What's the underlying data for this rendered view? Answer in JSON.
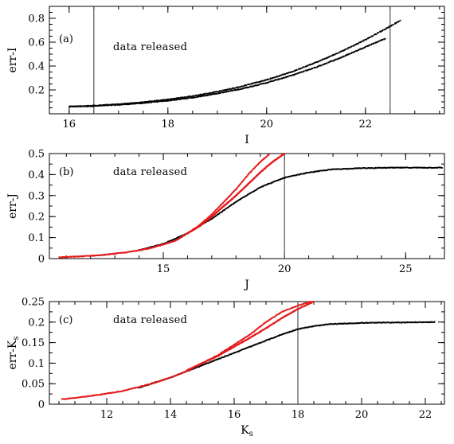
{
  "chart_data": [
    {
      "type": "scatter",
      "panel_tag": "(a)",
      "annotation": "data released",
      "xlabel": "I",
      "ylabel": "err-I",
      "xlim": [
        15.6,
        23.6
      ],
      "ylim": [
        0,
        0.9
      ],
      "xticks": [
        16,
        18,
        20,
        22
      ],
      "yticks": [
        0.2,
        0.4,
        0.6,
        0.8
      ],
      "minor_x": 0.5,
      "minor_y": 0.05,
      "cut_lines_x": [
        16.5,
        22.5
      ],
      "series": [
        {
          "color": "#000000",
          "points": [
            [
              16,
              0.06
            ],
            [
              16.5,
              0.065
            ],
            [
              17,
              0.075
            ],
            [
              17.5,
              0.09
            ],
            [
              18,
              0.11
            ],
            [
              18.5,
              0.135
            ],
            [
              19,
              0.17
            ],
            [
              19.5,
              0.21
            ],
            [
              20,
              0.26
            ],
            [
              20.5,
              0.32
            ],
            [
              21,
              0.39
            ],
            [
              21.5,
              0.47
            ],
            [
              22,
              0.56
            ],
            [
              22.4,
              0.63
            ]
          ]
        },
        {
          "color": "#000000",
          "points": [
            [
              16,
              0.06
            ],
            [
              16.5,
              0.068
            ],
            [
              17,
              0.08
            ],
            [
              17.5,
              0.097
            ],
            [
              18,
              0.12
            ],
            [
              18.5,
              0.148
            ],
            [
              19,
              0.185
            ],
            [
              19.5,
              0.23
            ],
            [
              20,
              0.285
            ],
            [
              20.5,
              0.35
            ],
            [
              21,
              0.43
            ],
            [
              21.5,
              0.52
            ],
            [
              22,
              0.62
            ],
            [
              22.4,
              0.71
            ],
            [
              22.7,
              0.78
            ]
          ]
        }
      ]
    },
    {
      "type": "scatter",
      "panel_tag": "(b)",
      "annotation": "data released",
      "xlabel": "J",
      "ylabel": "err-J",
      "xlim": [
        10.3,
        26.6
      ],
      "ylim": [
        0,
        0.5
      ],
      "xticks": [
        15,
        20,
        25
      ],
      "yticks": [
        0,
        0.1,
        0.2,
        0.3,
        0.4,
        0.5
      ],
      "minor_x": 1,
      "minor_y": 0.05,
      "cut_lines_x": [
        20
      ],
      "series": [
        {
          "color": "#000000",
          "points": [
            [
              14,
              0.04
            ],
            [
              15,
              0.07
            ],
            [
              16,
              0.12
            ],
            [
              17,
              0.19
            ],
            [
              18,
              0.27
            ],
            [
              19,
              0.34
            ],
            [
              20,
              0.385
            ],
            [
              21,
              0.41
            ],
            [
              22,
              0.425
            ],
            [
              23,
              0.43
            ],
            [
              24,
              0.432
            ],
            [
              25,
              0.433
            ],
            [
              26.5,
              0.433
            ]
          ]
        },
        {
          "color": "#e41a1c",
          "points": [
            [
              10.7,
              0.006
            ],
            [
              11.5,
              0.01
            ],
            [
              12.5,
              0.017
            ],
            [
              13.5,
              0.03
            ],
            [
              14.5,
              0.05
            ],
            [
              15.5,
              0.085
            ],
            [
              16,
              0.12
            ],
            [
              16.5,
              0.16
            ],
            [
              17,
              0.21
            ],
            [
              17.5,
              0.27
            ],
            [
              18,
              0.33
            ],
            [
              18.5,
              0.4
            ],
            [
              19,
              0.46
            ],
            [
              19.4,
              0.5
            ]
          ]
        },
        {
          "color": "#e41a1c",
          "points": [
            [
              16,
              0.12
            ],
            [
              16.5,
              0.155
            ],
            [
              17,
              0.2
            ],
            [
              17.5,
              0.25
            ],
            [
              18,
              0.3
            ],
            [
              18.5,
              0.355
            ],
            [
              19,
              0.41
            ],
            [
              19.5,
              0.46
            ],
            [
              20,
              0.5
            ]
          ]
        }
      ]
    },
    {
      "type": "scatter",
      "panel_tag": "(c)",
      "annotation": "data released",
      "xlabel": "Ks",
      "ylabel": "err-Ks",
      "xlim": [
        10.2,
        22.6
      ],
      "ylim": [
        0,
        0.25
      ],
      "xticks": [
        12,
        14,
        16,
        18,
        20,
        22
      ],
      "yticks": [
        0,
        0.05,
        0.1,
        0.15,
        0.2,
        0.25
      ],
      "minor_x": 0.5,
      "minor_y": 0.025,
      "cut_lines_x": [
        18
      ],
      "series": [
        {
          "color": "#000000",
          "points": [
            [
              13,
              0.04
            ],
            [
              14,
              0.065
            ],
            [
              14.5,
              0.08
            ],
            [
              15,
              0.095
            ],
            [
              15.5,
              0.11
            ],
            [
              16,
              0.125
            ],
            [
              16.5,
              0.14
            ],
            [
              17,
              0.155
            ],
            [
              17.5,
              0.17
            ],
            [
              18,
              0.183
            ],
            [
              18.5,
              0.19
            ],
            [
              19,
              0.195
            ],
            [
              20,
              0.198
            ],
            [
              21,
              0.199
            ],
            [
              22.3,
              0.2
            ]
          ]
        },
        {
          "color": "#e41a1c",
          "points": [
            [
              10.6,
              0.012
            ],
            [
              11.5,
              0.02
            ],
            [
              12.5,
              0.032
            ],
            [
              13.5,
              0.052
            ],
            [
              14,
              0.065
            ],
            [
              14.5,
              0.08
            ],
            [
              15,
              0.1
            ],
            [
              15.5,
              0.12
            ],
            [
              16,
              0.145
            ],
            [
              16.5,
              0.17
            ],
            [
              17,
              0.2
            ],
            [
              17.5,
              0.225
            ],
            [
              18,
              0.24
            ],
            [
              18.4,
              0.25
            ]
          ]
        },
        {
          "color": "#e41a1c",
          "points": [
            [
              14.5,
              0.082
            ],
            [
              15,
              0.1
            ],
            [
              15.5,
              0.118
            ],
            [
              16,
              0.14
            ],
            [
              16.5,
              0.162
            ],
            [
              17,
              0.185
            ],
            [
              17.5,
              0.21
            ],
            [
              18,
              0.232
            ],
            [
              18.5,
              0.25
            ]
          ]
        }
      ]
    }
  ]
}
